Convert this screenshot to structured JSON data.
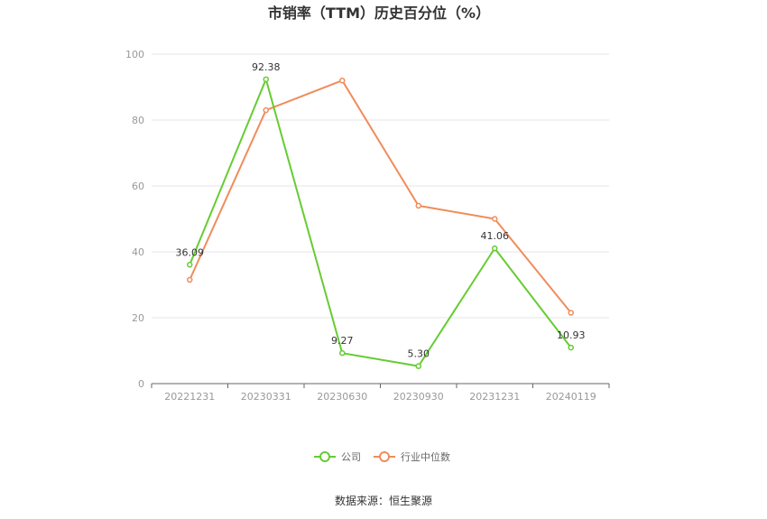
{
  "chart_data": {
    "type": "line",
    "title": "市销率（TTM）历史百分位（%）",
    "categories": [
      "20221231",
      "20230331",
      "20230630",
      "20230930",
      "20231231",
      "20240119"
    ],
    "ylim": [
      0,
      100
    ],
    "yticks": [
      "0",
      "20",
      "40",
      "60",
      "80",
      "100"
    ],
    "grid": true,
    "legend_position": "bottom",
    "series": [
      {
        "name": "公司",
        "color": "#66cc33",
        "values": [
          36.09,
          92.38,
          9.27,
          5.3,
          41.06,
          10.93
        ],
        "labels": [
          "36.09",
          "92.38",
          "9.27",
          "5.30",
          "41.06",
          "10.93"
        ]
      },
      {
        "name": "行业中位数",
        "color": "#f08c5a",
        "values": [
          31.5,
          83.0,
          92.0,
          54.0,
          50.0,
          21.5
        ]
      }
    ]
  },
  "source_text": "数据来源：恒生聚源"
}
